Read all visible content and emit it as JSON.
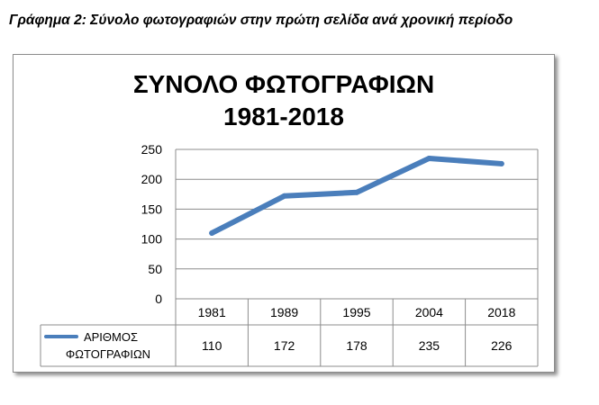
{
  "caption": "Γράφημα 2: Σύνολο φωτογραφιών στην πρώτη σελίδα ανά χρονική περίοδο",
  "chart_data": {
    "type": "line",
    "title_line1": "ΣΥΝΟΛΟ ΦΩΤΟΓΡΑΦΙΩΝ",
    "title_line2": "1981-2018",
    "categories": [
      "1981",
      "1989",
      "1995",
      "2004",
      "2018"
    ],
    "series": [
      {
        "name_line1": "ΑΡΙΘΜΟΣ",
        "name_line2": "ΦΩΤΟΓΡΑΦΙΩΝ",
        "values": [
          110,
          172,
          178,
          235,
          226
        ],
        "color": "#4a7ebb"
      }
    ],
    "ylim": [
      0,
      250
    ],
    "yticks": [
      0,
      50,
      100,
      150,
      200,
      250
    ],
    "grid": true,
    "data_table": true
  }
}
